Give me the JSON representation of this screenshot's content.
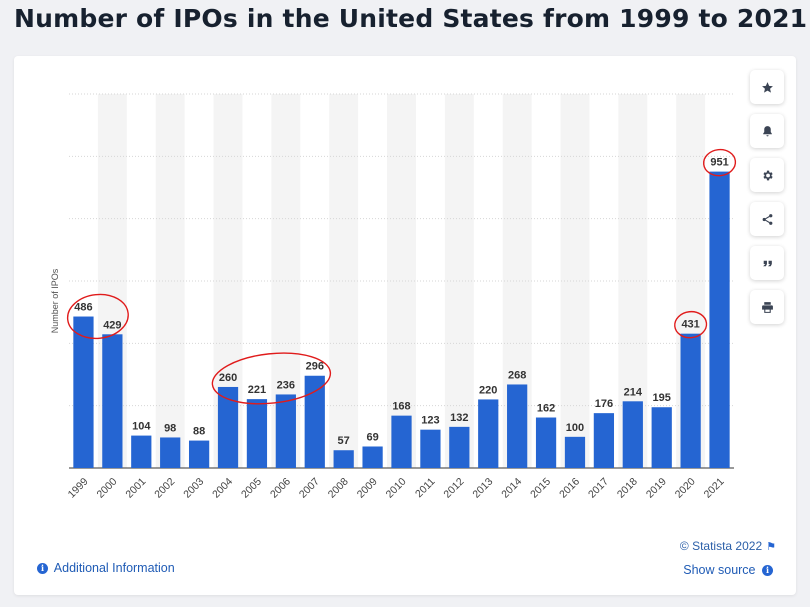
{
  "page": {
    "title": "Number of IPOs in the United States from 1999 to 2021"
  },
  "colors": {
    "bar": "#2565d2",
    "annotation": "#e01b1b",
    "band": "#f4f4f4",
    "grid": "#d6d6d6",
    "label": "#333333"
  },
  "toolbar": {
    "icons": [
      "star-icon",
      "bell-icon",
      "gear-icon",
      "share-icon",
      "quote-icon",
      "print-icon"
    ]
  },
  "footer": {
    "copyright": "© Statista 2022",
    "additional_info": "Additional Information",
    "show_source": "Show source"
  },
  "chart_data": {
    "type": "bar",
    "title": "Number of IPOs in the United States from 1999 to 2021",
    "xlabel": "",
    "ylabel": "Number of IPOs",
    "ylim": [
      0,
      1200
    ],
    "grid": true,
    "categories": [
      "1999",
      "2000",
      "2001",
      "2002",
      "2003",
      "2004",
      "2005",
      "2006",
      "2007",
      "2008",
      "2009",
      "2010",
      "2011",
      "2012",
      "2013",
      "2014",
      "2015",
      "2016",
      "2017",
      "2018",
      "2019",
      "2020",
      "2021"
    ],
    "values": [
      486,
      429,
      104,
      98,
      88,
      260,
      221,
      236,
      296,
      57,
      69,
      168,
      123,
      132,
      220,
      268,
      162,
      100,
      176,
      214,
      195,
      431,
      951
    ],
    "annotations": [
      {
        "type": "circle",
        "categories": [
          "1999",
          "2000"
        ]
      },
      {
        "type": "circle",
        "categories": [
          "2004",
          "2005",
          "2006",
          "2007"
        ]
      },
      {
        "type": "circle",
        "categories": [
          "2020"
        ]
      },
      {
        "type": "circle",
        "categories": [
          "2021"
        ]
      }
    ]
  }
}
